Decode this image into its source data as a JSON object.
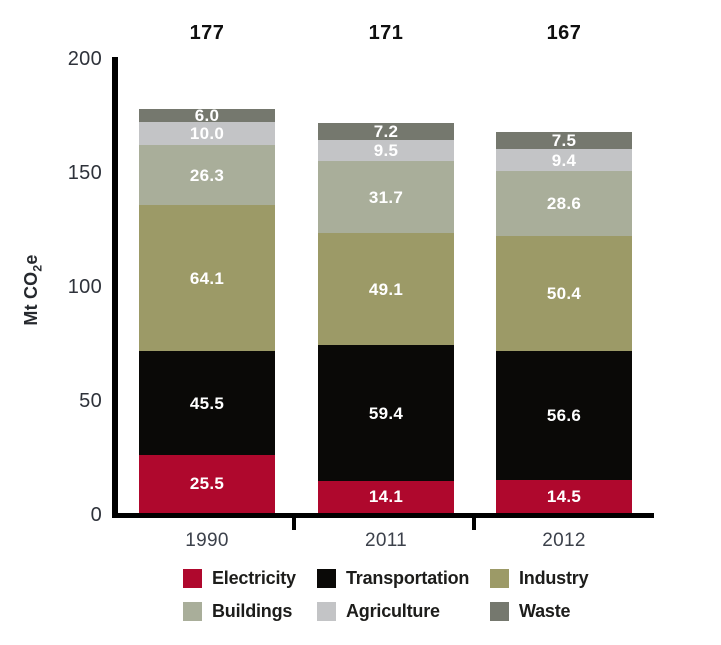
{
  "chart_data": {
    "type": "bar",
    "stacked": true,
    "title": "",
    "ylabel": "Mt CO2e",
    "ylabel_parts": {
      "prefix": "Mt CO",
      "sub": "2",
      "suffix": "e"
    },
    "xlabel": "",
    "categories": [
      "1990",
      "2011",
      "2012"
    ],
    "series": [
      {
        "name": "Electricity",
        "color": "#AF082D",
        "values": [
          25.5,
          14.1,
          14.5
        ]
      },
      {
        "name": "Transportation",
        "color": "#0a0907",
        "values": [
          45.5,
          59.4,
          56.6
        ]
      },
      {
        "name": "Industry",
        "color": "#9c9a67",
        "values": [
          64.1,
          49.1,
          50.4
        ]
      },
      {
        "name": "Buildings",
        "color": "#a9ae9a",
        "values": [
          26.3,
          31.7,
          28.6
        ]
      },
      {
        "name": "Agriculture",
        "color": "#c3c4c6",
        "values": [
          10.0,
          9.5,
          9.4
        ]
      },
      {
        "name": "Waste",
        "color": "#75786e",
        "values": [
          6.0,
          7.2,
          7.5
        ]
      }
    ],
    "totals": [
      177,
      171,
      167
    ],
    "y_axis": {
      "min": 0,
      "max": 200,
      "ticks": [
        0,
        50,
        100,
        150,
        200
      ]
    },
    "value_label_color": "#ffffff",
    "value_label_decimals": 1,
    "legend_position": "bottom",
    "grid": false
  }
}
